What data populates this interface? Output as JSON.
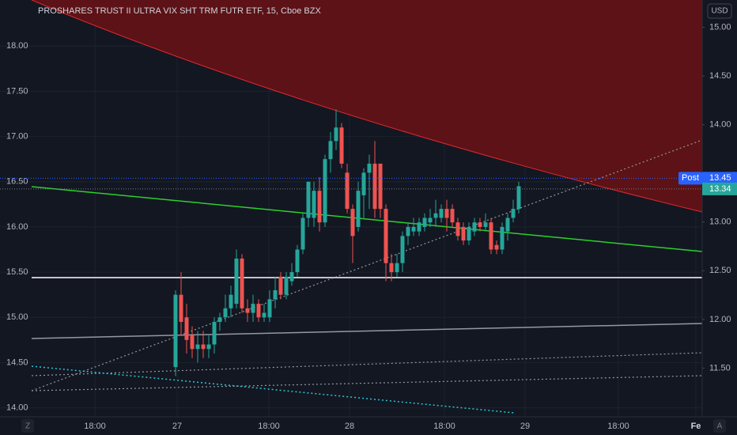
{
  "chart_data": {
    "type": "candlestick",
    "title": "PROSHARES TRUST II ULTRA VIX SHT TRM FUTR ETF, 15, Cboe BZX",
    "currency": "USD",
    "x_labels": [
      "18:00",
      "27",
      "18:00",
      "28",
      "18:00",
      "29",
      "18:00",
      "Fe"
    ],
    "open": [
      14.45,
      15.25,
      15.0,
      14.8,
      14.65,
      14.7,
      14.65,
      14.7,
      14.95,
      15.0,
      15.1,
      15.15,
      15.65,
      15.1,
      15.05,
      15.15,
      15.0,
      15.0,
      15.2,
      15.45,
      15.25,
      15.4,
      15.5,
      15.75,
      16.1,
      16.1,
      16.4,
      16.05,
      16.75,
      16.95,
      17.1,
      16.6,
      16.2,
      16.0,
      16.35,
      16.6,
      16.7,
      16.7,
      16.2,
      15.6,
      15.5,
      15.6,
      15.9,
      15.95,
      15.95,
      16.0,
      16.05,
      16.1,
      16.1,
      16.2,
      16.2,
      16.05,
      16.0,
      15.85,
      15.95,
      16.05,
      16.0,
      16.05,
      15.8,
      15.75,
      15.95,
      16.1,
      16.2
    ],
    "high": [
      15.3,
      15.5,
      15.15,
      14.9,
      14.85,
      14.85,
      14.8,
      15.0,
      15.05,
      15.25,
      15.35,
      15.75,
      15.7,
      15.2,
      15.25,
      15.2,
      15.15,
      15.3,
      15.45,
      15.5,
      15.5,
      15.6,
      15.8,
      16.15,
      16.5,
      16.5,
      16.55,
      16.8,
      17.05,
      17.3,
      17.15,
      16.7,
      16.25,
      16.5,
      16.65,
      16.8,
      16.95,
      16.7,
      16.25,
      15.7,
      15.7,
      15.95,
      16.05,
      16.1,
      16.1,
      16.15,
      16.2,
      16.3,
      16.25,
      16.3,
      16.25,
      16.1,
      16.05,
      16.05,
      16.1,
      16.1,
      16.15,
      16.1,
      15.85,
      16.05,
      16.15,
      16.3,
      16.5
    ],
    "low": [
      14.35,
      14.8,
      14.6,
      14.55,
      14.5,
      14.55,
      14.55,
      14.6,
      14.85,
      14.95,
      15.0,
      15.1,
      15.05,
      14.95,
      14.95,
      14.95,
      14.95,
      14.95,
      15.1,
      15.2,
      15.2,
      15.35,
      15.45,
      15.7,
      16.0,
      16.0,
      15.95,
      16.0,
      16.6,
      16.85,
      16.65,
      16.15,
      15.6,
      15.95,
      16.1,
      16.2,
      16.1,
      16.1,
      15.4,
      15.4,
      15.45,
      15.5,
      15.8,
      15.9,
      15.9,
      15.95,
      16.0,
      16.0,
      16.05,
      15.95,
      16.0,
      15.85,
      15.8,
      15.8,
      15.9,
      15.95,
      15.95,
      15.7,
      15.7,
      15.7,
      15.85,
      16.05,
      16.15
    ],
    "close": [
      15.25,
      14.95,
      14.75,
      14.65,
      14.7,
      14.65,
      14.7,
      14.95,
      15.0,
      15.1,
      15.25,
      15.65,
      15.1,
      15.05,
      15.15,
      15.0,
      15.05,
      15.2,
      15.3,
      15.25,
      15.45,
      15.5,
      15.75,
      16.1,
      16.5,
      16.4,
      16.05,
      16.75,
      16.95,
      17.1,
      16.7,
      16.2,
      15.9,
      16.4,
      16.6,
      16.7,
      16.2,
      16.2,
      15.6,
      15.5,
      15.6,
      15.9,
      16.0,
      16.0,
      16.05,
      16.1,
      16.1,
      16.15,
      16.2,
      16.1,
      16.05,
      15.9,
      15.85,
      16.0,
      16.05,
      16.0,
      16.05,
      15.75,
      15.75,
      16.0,
      16.1,
      16.2,
      16.45
    ],
    "up_color": "#26a69a",
    "down_color": "#ef5350",
    "ylim": [
      13.9,
      18.51
    ],
    "yticks": [
      {
        "value": 14,
        "label": "14.00"
      },
      {
        "value": 14.5,
        "label": "14.50"
      },
      {
        "value": 15,
        "label": "15.00"
      },
      {
        "value": 15.5,
        "label": "15.50"
      },
      {
        "value": 16,
        "label": "16.00"
      },
      {
        "value": 16.5,
        "label": "16.50"
      },
      {
        "value": 17,
        "label": "17.00"
      },
      {
        "value": 17.5,
        "label": "17.50"
      },
      {
        "value": 18,
        "label": "18.00"
      }
    ],
    "y2lim": [
      11.0,
      15.28
    ],
    "y2ticks": [
      {
        "value": 11.5,
        "label": "11.50"
      },
      {
        "value": 12,
        "label": "12.00"
      },
      {
        "value": 12.5,
        "label": "12.50"
      },
      {
        "value": 13,
        "label": "13.00"
      },
      {
        "value": 14,
        "label": "14.00"
      },
      {
        "value": 14.5,
        "label": "14.50"
      },
      {
        "value": 15,
        "label": "15.00"
      }
    ],
    "post_label": "Post",
    "post_price": 13.45,
    "last_price": 13.34,
    "grid": true
  },
  "controls": {
    "left": "Z",
    "right": "A"
  }
}
